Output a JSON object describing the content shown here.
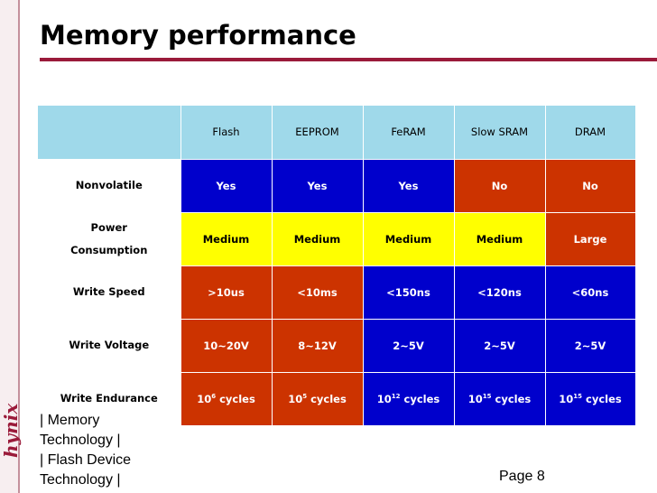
{
  "slide": {
    "title": "Memory performance",
    "logo_text": "hynix",
    "footer_lines": [
      "| Memory",
      "Technology |",
      "| Flash Device",
      "Technology |"
    ],
    "page_label": "Page 8"
  },
  "table": {
    "columns": [
      "Flash",
      "EEPROM",
      "FeRAM",
      "Slow SRAM",
      "DRAM"
    ],
    "rows": [
      {
        "label_lines": [
          "Nonvolatile"
        ],
        "cells": [
          {
            "text": "Yes",
            "color": "blue"
          },
          {
            "text": "Yes",
            "color": "blue"
          },
          {
            "text": "Yes",
            "color": "blue"
          },
          {
            "text": "No",
            "color": "red"
          },
          {
            "text": "No",
            "color": "red"
          }
        ]
      },
      {
        "label_lines": [
          "Power",
          "Consumption"
        ],
        "cells": [
          {
            "text": "Medium",
            "color": "yellow"
          },
          {
            "text": "Medium",
            "color": "yellow"
          },
          {
            "text": "Medium",
            "color": "yellow"
          },
          {
            "text": "Medium",
            "color": "yellow"
          },
          {
            "text": "Large",
            "color": "red"
          }
        ]
      },
      {
        "label_lines": [
          "Write Speed"
        ],
        "cells": [
          {
            "text": ">10us",
            "color": "red"
          },
          {
            "text": "<10ms",
            "color": "red"
          },
          {
            "text": "<150ns",
            "color": "blue"
          },
          {
            "text": "<120ns",
            "color": "blue"
          },
          {
            "text": "<60ns",
            "color": "blue"
          }
        ]
      },
      {
        "label_lines": [
          "Write Voltage"
        ],
        "cells": [
          {
            "text": "10~20V",
            "color": "red"
          },
          {
            "text": "8~12V",
            "color": "red"
          },
          {
            "text": "2~5V",
            "color": "blue"
          },
          {
            "text": "2~5V",
            "color": "blue"
          },
          {
            "text": "2~5V",
            "color": "blue"
          }
        ]
      },
      {
        "label_lines": [
          "Write Endurance"
        ],
        "cells": [
          {
            "base": "10",
            "exp": "6",
            "suffix": " cycles",
            "color": "red"
          },
          {
            "base": "10",
            "exp": "5",
            "suffix": " cycles",
            "color": "red"
          },
          {
            "base": "10",
            "exp": "12",
            "suffix": " cycles",
            "color": "blue"
          },
          {
            "base": "10",
            "exp": "15",
            "suffix": " cycles",
            "color": "blue"
          },
          {
            "base": "10",
            "exp": "15",
            "suffix": " cycles",
            "color": "blue"
          }
        ]
      }
    ]
  },
  "colors": {
    "blue": "#0000cc",
    "red": "#cc3300",
    "yellow": "#ffff00",
    "header": "#9fd9ea",
    "accent": "#9a1a3a"
  }
}
